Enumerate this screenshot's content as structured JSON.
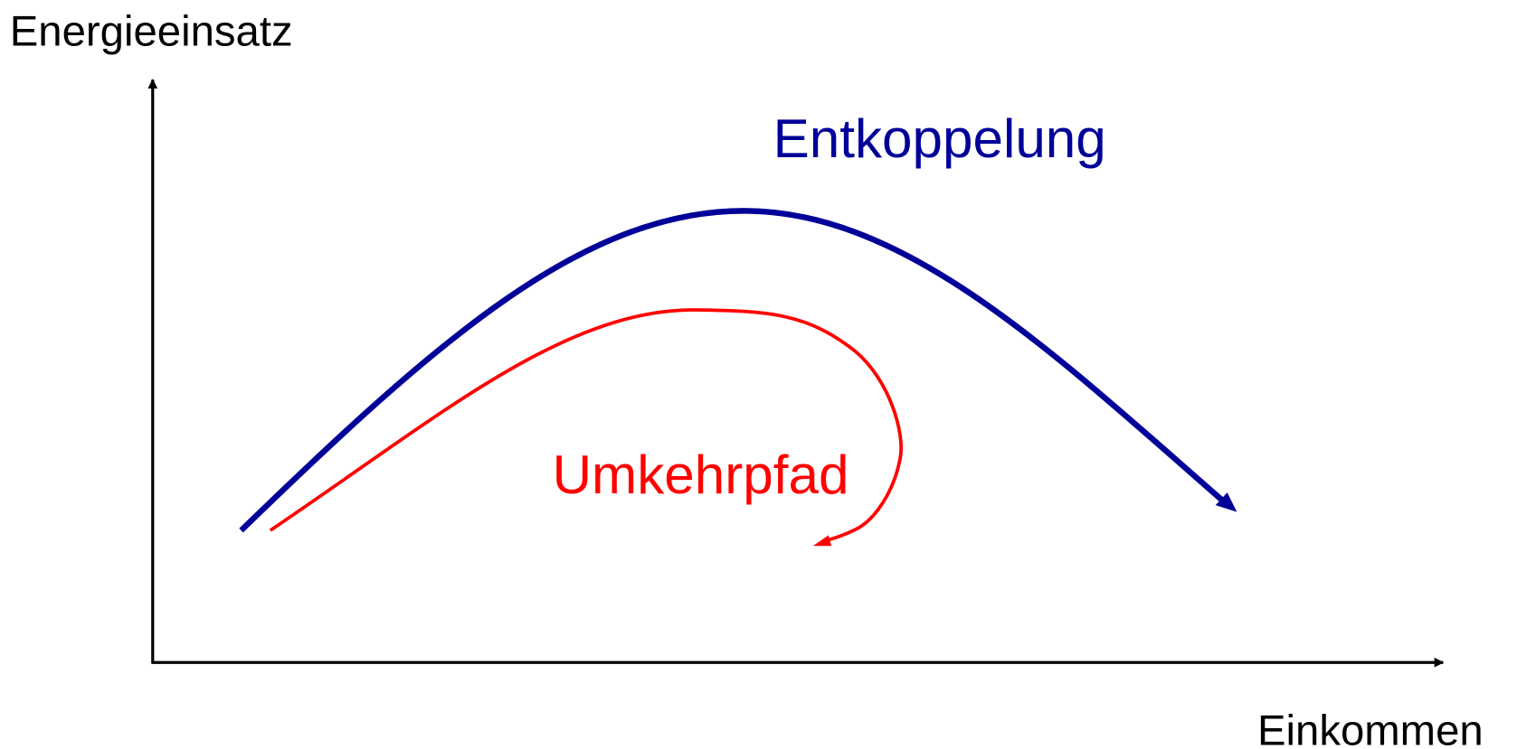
{
  "axes": {
    "y_label": "Energieeinsatz",
    "x_label": "Einkommen"
  },
  "curves": [
    {
      "label": "Entkoppelung"
    },
    {
      "label": "Umkehrpfad"
    }
  ]
}
